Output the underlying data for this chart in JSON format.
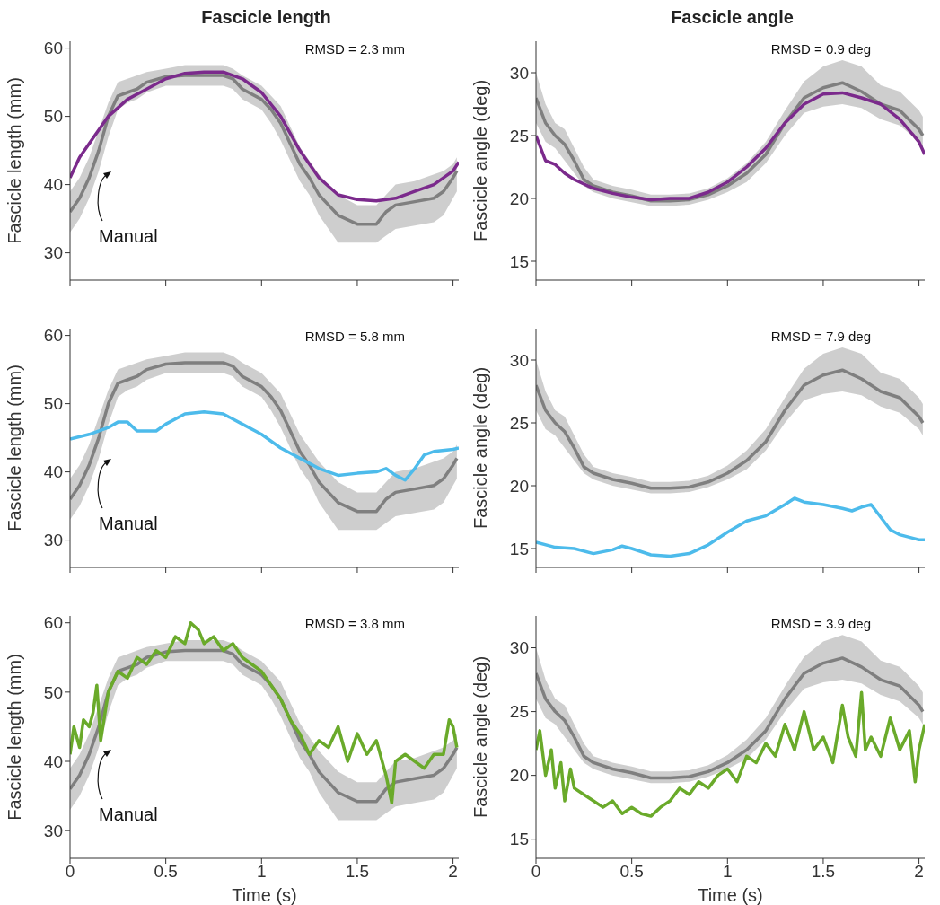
{
  "chart_data": [
    {
      "type": "line",
      "title": "Fascicle length",
      "ylabel": "Fascicle length (mm)",
      "xlim": [
        0,
        2.03
      ],
      "xticks": [
        0,
        0.5,
        1,
        1.5,
        2
      ],
      "ylim": [
        26,
        61
      ],
      "yticks": [
        30,
        40,
        50,
        60
      ],
      "tick_labels": "y",
      "annotations": [
        "RMSD = 2.3 mm",
        "Manual"
      ],
      "series": [
        {
          "color": "#7f7f7f",
          "x": [
            0,
            0.05,
            0.1,
            0.15,
            0.2,
            0.25,
            0.3,
            0.35,
            0.4,
            0.5,
            0.6,
            0.7,
            0.8,
            0.85,
            0.9,
            1,
            1.05,
            1.1,
            1.15,
            1.2,
            1.25,
            1.3,
            1.35,
            1.4,
            1.5,
            1.6,
            1.65,
            1.7,
            1.8,
            1.9,
            1.95,
            2,
            2.02
          ],
          "values": [
            36,
            38,
            41,
            45,
            50,
            53,
            53.5,
            54,
            55,
            55.8,
            56,
            56,
            56,
            55.5,
            54,
            52.5,
            51,
            49,
            46,
            43,
            41,
            38.5,
            37,
            35.5,
            34.2,
            34.2,
            36,
            37,
            37.5,
            38,
            39,
            41,
            42
          ],
          "lower": [
            33,
            35,
            38,
            42,
            47,
            51,
            52,
            52.5,
            53.5,
            54.5,
            54.5,
            54.5,
            54.5,
            54,
            52.5,
            51,
            49,
            46.5,
            43.5,
            40.5,
            38.5,
            35.5,
            33.5,
            31.5,
            31.5,
            31.5,
            32.5,
            33.5,
            34,
            34.5,
            35.5,
            38,
            39
          ],
          "upper": [
            39,
            41,
            44,
            48,
            52,
            55,
            55.5,
            56,
            56.5,
            57,
            57.5,
            57.5,
            57.5,
            57,
            56,
            54.5,
            53,
            51.5,
            48.5,
            45.5,
            43.5,
            41.5,
            40,
            38.5,
            37,
            37,
            38.5,
            40,
            40.5,
            41.5,
            42,
            43,
            44
          ]
        },
        {
          "color": "#7b2a8c",
          "x": [
            0,
            0.05,
            0.1,
            0.15,
            0.2,
            0.3,
            0.4,
            0.5,
            0.6,
            0.7,
            0.8,
            0.9,
            1,
            1.1,
            1.2,
            1.3,
            1.4,
            1.5,
            1.6,
            1.7,
            1.8,
            1.9,
            2,
            2.03
          ],
          "values": [
            41,
            44,
            46,
            48,
            50,
            52.5,
            54,
            55.5,
            56.3,
            56.5,
            56.5,
            55.5,
            53.5,
            50,
            45,
            41,
            38.5,
            37.8,
            37.6,
            38,
            39,
            40,
            42,
            43.3
          ]
        }
      ]
    },
    {
      "type": "line",
      "title": "Fascicle angle",
      "ylabel": "Fascicle angle (deg)",
      "xlim": [
        0,
        2.03
      ],
      "xticks": [
        0,
        0.5,
        1,
        1.5,
        2
      ],
      "ylim": [
        13.5,
        32.5
      ],
      "yticks": [
        15,
        20,
        25,
        30
      ],
      "tick_labels": "y",
      "annotations": [
        "RMSD = 0.9 deg"
      ],
      "series": [
        {
          "color": "#7f7f7f",
          "x": [
            0,
            0.05,
            0.1,
            0.15,
            0.2,
            0.25,
            0.3,
            0.4,
            0.5,
            0.6,
            0.7,
            0.8,
            0.9,
            1,
            1.1,
            1.2,
            1.3,
            1.4,
            1.5,
            1.6,
            1.7,
            1.8,
            1.9,
            2,
            2.02
          ],
          "values": [
            28,
            26,
            25,
            24.3,
            23,
            21.5,
            21,
            20.5,
            20.2,
            19.8,
            19.8,
            19.9,
            20.3,
            21,
            22,
            23.5,
            26,
            28,
            28.8,
            29.2,
            28.5,
            27.5,
            27,
            25.5,
            25
          ],
          "lower": [
            26,
            24.5,
            24,
            23,
            22,
            21,
            20.5,
            20,
            19.7,
            19.4,
            19.4,
            19.5,
            19.9,
            20.5,
            21.3,
            22.8,
            25,
            26.8,
            27.3,
            27.5,
            27.2,
            26.3,
            25.8,
            24.5,
            24
          ],
          "upper": [
            30,
            27.5,
            26,
            25.5,
            24,
            22.5,
            21.5,
            21,
            20.7,
            20.3,
            20.3,
            20.4,
            20.8,
            21.6,
            22.8,
            24.5,
            27,
            29.3,
            30.5,
            31,
            30.5,
            29,
            28.5,
            27,
            26.5
          ]
        },
        {
          "color": "#7b2a8c",
          "x": [
            0,
            0.05,
            0.1,
            0.15,
            0.2,
            0.3,
            0.4,
            0.5,
            0.6,
            0.7,
            0.8,
            0.9,
            1,
            1.1,
            1.2,
            1.3,
            1.4,
            1.5,
            1.6,
            1.7,
            1.8,
            1.9,
            2,
            2.03
          ],
          "values": [
            25,
            23,
            22.7,
            22,
            21.5,
            20.8,
            20.4,
            20.1,
            19.9,
            20,
            20,
            20.5,
            21.3,
            22.5,
            24,
            26,
            27.5,
            28.3,
            28.4,
            28,
            27.5,
            26.3,
            24.5,
            23.5
          ]
        }
      ]
    },
    {
      "type": "line",
      "ylabel": "Fascicle length (mm)",
      "xlim": [
        0,
        2.03
      ],
      "xticks": [
        0,
        0.5,
        1,
        1.5,
        2
      ],
      "ylim": [
        26,
        61
      ],
      "yticks": [
        30,
        40,
        50,
        60
      ],
      "tick_labels": "y",
      "annotations": [
        "RMSD = 5.8 mm",
        "Manual"
      ],
      "series": [
        {
          "color": "#7f7f7f",
          "x": [
            0,
            0.05,
            0.1,
            0.15,
            0.2,
            0.25,
            0.3,
            0.35,
            0.4,
            0.5,
            0.6,
            0.7,
            0.8,
            0.85,
            0.9,
            1,
            1.05,
            1.1,
            1.15,
            1.2,
            1.25,
            1.3,
            1.35,
            1.4,
            1.5,
            1.6,
            1.65,
            1.7,
            1.8,
            1.9,
            1.95,
            2,
            2.02
          ],
          "values": [
            36,
            38,
            41,
            45,
            50,
            53,
            53.5,
            54,
            55,
            55.8,
            56,
            56,
            56,
            55.5,
            54,
            52.5,
            51,
            49,
            46,
            43,
            41,
            38.5,
            37,
            35.5,
            34.2,
            34.2,
            36,
            37,
            37.5,
            38,
            39,
            41,
            42
          ],
          "lower": [
            33,
            35,
            38,
            42,
            47,
            51,
            52,
            52.5,
            53.5,
            54.5,
            54.5,
            54.5,
            54.5,
            54,
            52.5,
            51,
            49,
            46.5,
            43.5,
            40.5,
            38.5,
            35.5,
            33.5,
            31.5,
            31.5,
            31.5,
            32.5,
            33.5,
            34,
            34.5,
            35.5,
            38,
            39
          ],
          "upper": [
            39,
            41,
            44,
            48,
            52,
            55,
            55.5,
            56,
            56.5,
            57,
            57.5,
            57.5,
            57.5,
            57,
            56,
            54.5,
            53,
            51.5,
            48.5,
            45.5,
            43.5,
            41.5,
            40,
            38.5,
            37,
            37,
            38.5,
            40,
            40.5,
            41.5,
            42,
            43,
            44
          ]
        },
        {
          "color": "#4dbbeb",
          "x": [
            0,
            0.1,
            0.2,
            0.25,
            0.3,
            0.35,
            0.45,
            0.5,
            0.6,
            0.7,
            0.8,
            0.9,
            1,
            1.1,
            1.2,
            1.3,
            1.4,
            1.5,
            1.6,
            1.65,
            1.7,
            1.75,
            1.8,
            1.85,
            1.9,
            2,
            2.03
          ],
          "values": [
            44.8,
            45.5,
            46.5,
            47.3,
            47.3,
            46,
            46,
            47,
            48.5,
            48.8,
            48.5,
            47,
            45.5,
            43.5,
            42,
            40.5,
            39.5,
            39.8,
            40,
            40.5,
            39.5,
            38.8,
            40.5,
            42.5,
            43,
            43.3,
            43.5
          ]
        }
      ]
    },
    {
      "type": "line",
      "ylabel": "Fascicle angle (deg)",
      "xlim": [
        0,
        2.03
      ],
      "xticks": [
        0,
        0.5,
        1,
        1.5,
        2
      ],
      "ylim": [
        13.5,
        32.5
      ],
      "yticks": [
        15,
        20,
        25,
        30
      ],
      "tick_labels": "y",
      "annotations": [
        "RMSD = 7.9 deg"
      ],
      "series": [
        {
          "color": "#7f7f7f",
          "x": [
            0,
            0.05,
            0.1,
            0.15,
            0.2,
            0.25,
            0.3,
            0.4,
            0.5,
            0.6,
            0.7,
            0.8,
            0.9,
            1,
            1.1,
            1.2,
            1.3,
            1.4,
            1.5,
            1.6,
            1.7,
            1.8,
            1.9,
            2,
            2.02
          ],
          "values": [
            28,
            26,
            25,
            24.3,
            23,
            21.5,
            21,
            20.5,
            20.2,
            19.8,
            19.8,
            19.9,
            20.3,
            21,
            22,
            23.5,
            26,
            28,
            28.8,
            29.2,
            28.5,
            27.5,
            27,
            25.5,
            25
          ],
          "lower": [
            26,
            24.5,
            24,
            23,
            22,
            21,
            20.5,
            20,
            19.7,
            19.4,
            19.4,
            19.5,
            19.9,
            20.5,
            21.3,
            22.8,
            25,
            26.8,
            27.3,
            27.5,
            27.2,
            26.3,
            25.8,
            24.5,
            24
          ],
          "upper": [
            30,
            27.5,
            26,
            25.5,
            24,
            22.5,
            21.5,
            21,
            20.7,
            20.3,
            20.3,
            20.4,
            20.8,
            21.6,
            22.8,
            24.5,
            27,
            29.3,
            30.5,
            31,
            30.5,
            29,
            28.5,
            27,
            26.5
          ]
        },
        {
          "color": "#4dbbeb",
          "x": [
            0,
            0.1,
            0.2,
            0.3,
            0.4,
            0.45,
            0.5,
            0.6,
            0.7,
            0.8,
            0.9,
            1,
            1.1,
            1.2,
            1.3,
            1.35,
            1.4,
            1.5,
            1.6,
            1.65,
            1.7,
            1.75,
            1.8,
            1.85,
            1.9,
            2,
            2.03
          ],
          "values": [
            15.5,
            15.1,
            15,
            14.6,
            14.9,
            15.2,
            15,
            14.5,
            14.4,
            14.6,
            15.3,
            16.3,
            17.2,
            17.6,
            18.5,
            19,
            18.7,
            18.5,
            18.2,
            18,
            18.3,
            18.5,
            17.5,
            16.5,
            16.1,
            15.7,
            15.7
          ]
        }
      ]
    },
    {
      "type": "line",
      "xlabel": "Time (s)",
      "ylabel": "Fascicle length (mm)",
      "xlim": [
        0,
        2.03
      ],
      "xticks": [
        0,
        0.5,
        1,
        1.5,
        2
      ],
      "ylim": [
        26,
        61
      ],
      "yticks": [
        30,
        40,
        50,
        60
      ],
      "annotations": [
        "RMSD = 3.8 mm",
        "Manual"
      ],
      "series": [
        {
          "color": "#7f7f7f",
          "x": [
            0,
            0.05,
            0.1,
            0.15,
            0.2,
            0.25,
            0.3,
            0.35,
            0.4,
            0.5,
            0.6,
            0.7,
            0.8,
            0.85,
            0.9,
            1,
            1.05,
            1.1,
            1.15,
            1.2,
            1.25,
            1.3,
            1.35,
            1.4,
            1.5,
            1.6,
            1.65,
            1.7,
            1.8,
            1.9,
            1.95,
            2,
            2.02
          ],
          "values": [
            36,
            38,
            41,
            45,
            50,
            53,
            53.5,
            54,
            55,
            55.8,
            56,
            56,
            56,
            55.5,
            54,
            52.5,
            51,
            49,
            46,
            43,
            41,
            38.5,
            37,
            35.5,
            34.2,
            34.2,
            36,
            37,
            37.5,
            38,
            39,
            41,
            42
          ],
          "lower": [
            33,
            35,
            38,
            42,
            47,
            51,
            52,
            52.5,
            53.5,
            54.5,
            54.5,
            54.5,
            54.5,
            54,
            52.5,
            51,
            49,
            46.5,
            43.5,
            40.5,
            38.5,
            35.5,
            33.5,
            31.5,
            31.5,
            31.5,
            32.5,
            33.5,
            34,
            34.5,
            35.5,
            38,
            39
          ],
          "upper": [
            39,
            41,
            44,
            48,
            52,
            55,
            55.5,
            56,
            56.5,
            57,
            57.5,
            57.5,
            57.5,
            57,
            56,
            54.5,
            53,
            51.5,
            48.5,
            45.5,
            43.5,
            41.5,
            40,
            38.5,
            37,
            37,
            38.5,
            40,
            40.5,
            41.5,
            42,
            43,
            44
          ]
        },
        {
          "color": "#6aaa2a",
          "x": [
            0,
            0.02,
            0.05,
            0.07,
            0.1,
            0.12,
            0.14,
            0.16,
            0.2,
            0.25,
            0.3,
            0.35,
            0.4,
            0.45,
            0.5,
            0.55,
            0.6,
            0.63,
            0.67,
            0.7,
            0.75,
            0.8,
            0.85,
            0.9,
            0.95,
            1,
            1.05,
            1.1,
            1.15,
            1.2,
            1.25,
            1.3,
            1.35,
            1.4,
            1.45,
            1.5,
            1.55,
            1.6,
            1.65,
            1.68,
            1.7,
            1.75,
            1.8,
            1.85,
            1.9,
            1.95,
            1.98,
            2,
            2.02
          ],
          "values": [
            41,
            45,
            42,
            46,
            45,
            47,
            51,
            43,
            50,
            53,
            52,
            55,
            54,
            56,
            55,
            58,
            57,
            60,
            59,
            57,
            58,
            56,
            57,
            55,
            54,
            53,
            51,
            49,
            46,
            44,
            41,
            43,
            42,
            45,
            40,
            44,
            41,
            43,
            38,
            34,
            40,
            41,
            40,
            39,
            41,
            41,
            46,
            45,
            42
          ]
        }
      ]
    },
    {
      "type": "line",
      "xlabel": "Time (s)",
      "ylabel": "Fascicle angle (deg)",
      "xlim": [
        0,
        2.03
      ],
      "xticks": [
        0,
        0.5,
        1,
        1.5,
        2
      ],
      "ylim": [
        13.5,
        32.5
      ],
      "yticks": [
        15,
        20,
        25,
        30
      ],
      "annotations": [
        "RMSD = 3.9 deg"
      ],
      "series": [
        {
          "color": "#7f7f7f",
          "x": [
            0,
            0.05,
            0.1,
            0.15,
            0.2,
            0.25,
            0.3,
            0.4,
            0.5,
            0.6,
            0.7,
            0.8,
            0.9,
            1,
            1.1,
            1.2,
            1.3,
            1.4,
            1.5,
            1.6,
            1.7,
            1.8,
            1.9,
            2,
            2.02
          ],
          "values": [
            28,
            26,
            25,
            24.3,
            23,
            21.5,
            21,
            20.5,
            20.2,
            19.8,
            19.8,
            19.9,
            20.3,
            21,
            22,
            23.5,
            26,
            28,
            28.8,
            29.2,
            28.5,
            27.5,
            27,
            25.5,
            25
          ],
          "lower": [
            26,
            24.5,
            24,
            23,
            22,
            21,
            20.5,
            20,
            19.7,
            19.4,
            19.4,
            19.5,
            19.9,
            20.5,
            21.3,
            22.8,
            25,
            26.8,
            27.3,
            27.5,
            27.2,
            26.3,
            25.8,
            24.5,
            24
          ],
          "upper": [
            30,
            27.5,
            26,
            25.5,
            24,
            22.5,
            21.5,
            21,
            20.7,
            20.3,
            20.3,
            20.4,
            20.8,
            21.6,
            22.8,
            24.5,
            27,
            29.3,
            30.5,
            31,
            30.5,
            29,
            28.5,
            27,
            26.5
          ]
        },
        {
          "color": "#6aaa2a",
          "x": [
            0,
            0.02,
            0.05,
            0.08,
            0.1,
            0.13,
            0.15,
            0.18,
            0.2,
            0.25,
            0.3,
            0.35,
            0.4,
            0.45,
            0.5,
            0.55,
            0.6,
            0.65,
            0.7,
            0.75,
            0.8,
            0.85,
            0.9,
            0.95,
            1,
            1.05,
            1.1,
            1.15,
            1.2,
            1.25,
            1.3,
            1.35,
            1.4,
            1.45,
            1.5,
            1.55,
            1.6,
            1.63,
            1.67,
            1.7,
            1.72,
            1.75,
            1.8,
            1.85,
            1.9,
            1.95,
            1.98,
            2,
            2.03
          ],
          "values": [
            22,
            23.5,
            20,
            22,
            19,
            21,
            18,
            20.5,
            19,
            18.5,
            18,
            17.5,
            18,
            17,
            17.5,
            17,
            16.8,
            17.5,
            18,
            19,
            18.5,
            19.5,
            19,
            20,
            20.5,
            19.5,
            21.5,
            21,
            22.5,
            21.5,
            24,
            22,
            25,
            22,
            23,
            21,
            25.5,
            23,
            21.5,
            26.5,
            22,
            23,
            21.5,
            24.5,
            22,
            23.5,
            19.5,
            22,
            24
          ]
        }
      ]
    }
  ]
}
